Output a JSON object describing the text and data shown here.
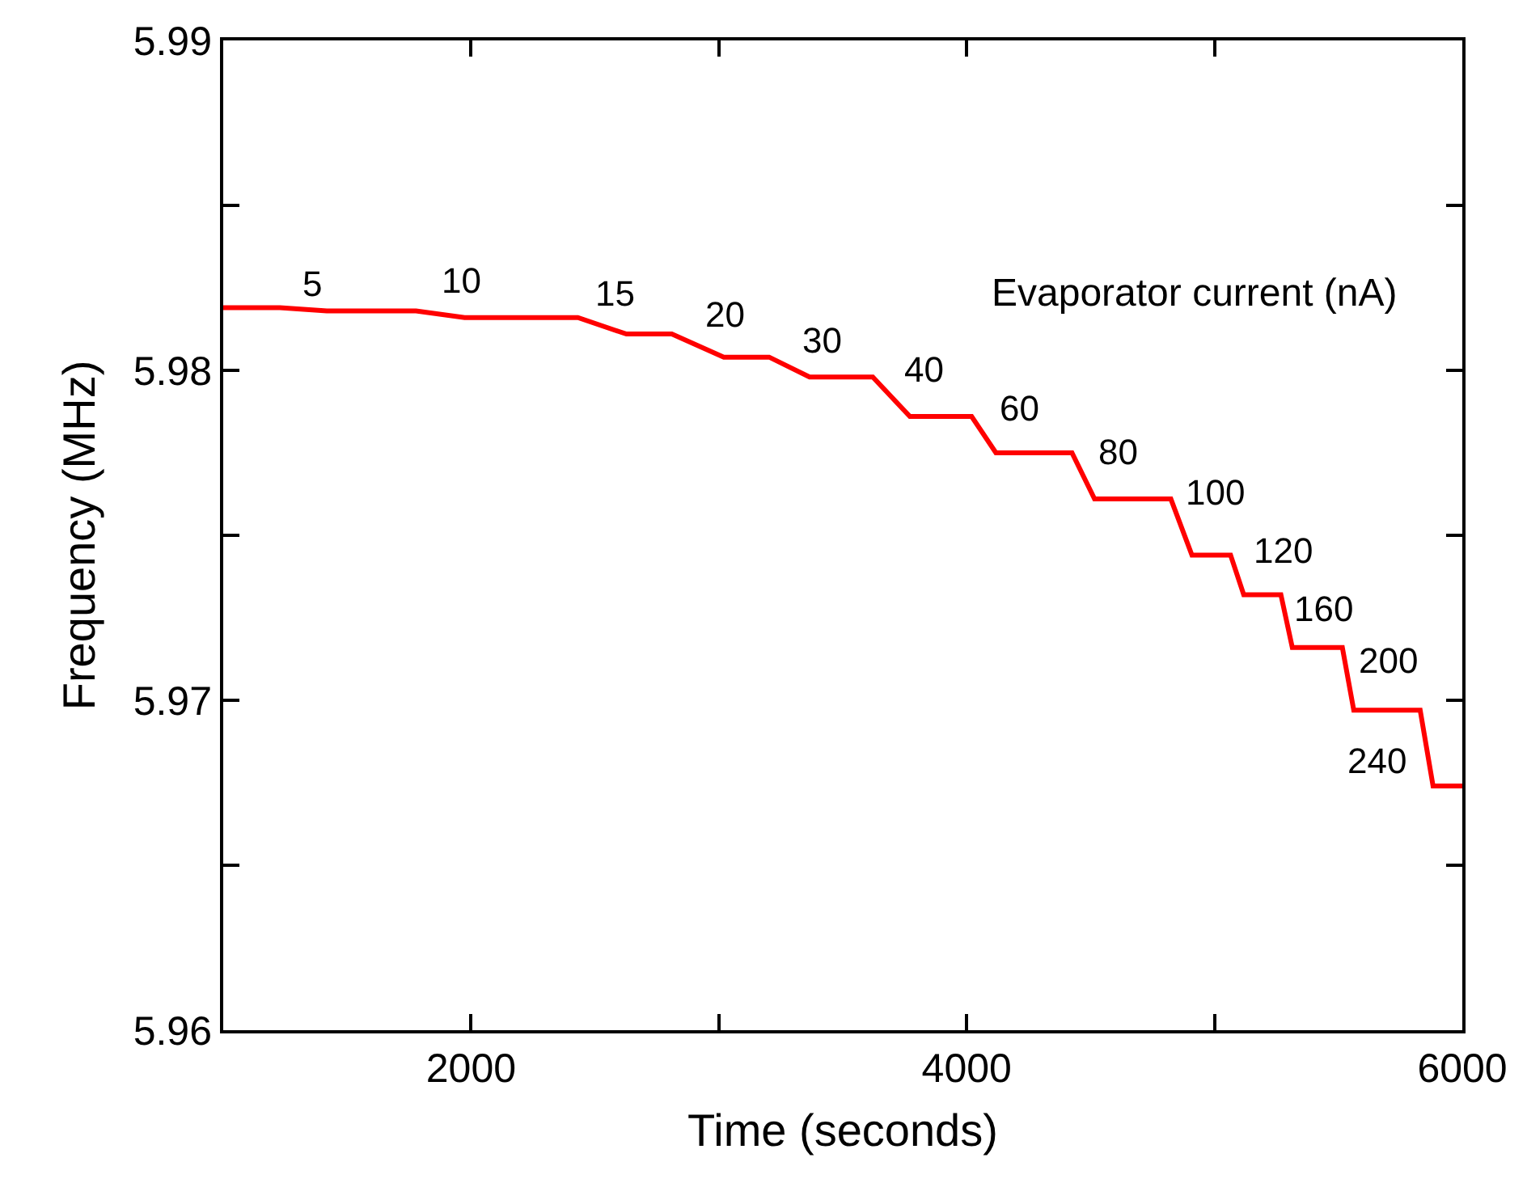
{
  "chart_data": {
    "type": "line",
    "xlabel": "Time (seconds)",
    "ylabel": "Frequency (MHz)",
    "x": [
      1000,
      1013,
      1229,
      1418,
      1778,
      1974,
      2431,
      2627,
      2810,
      3020,
      3203,
      3366,
      3621,
      3771,
      4020,
      4118,
      4425,
      4516,
      4824,
      4909,
      5065,
      5118,
      5268,
      5314,
      5516,
      5562,
      5830,
      5882,
      6000
    ],
    "series": [
      {
        "color": "#ff0000",
        "values": [
          5.9819,
          5.9819,
          5.9819,
          5.9818,
          5.9818,
          5.9816,
          5.9816,
          5.9811,
          5.9811,
          5.9804,
          5.9804,
          5.9798,
          5.9798,
          5.9786,
          5.9786,
          5.9775,
          5.9775,
          5.9761,
          5.9761,
          5.9744,
          5.9744,
          5.9732,
          5.9732,
          5.9716,
          5.9716,
          5.9697,
          5.9697,
          5.9674,
          5.9674
        ]
      }
    ],
    "xlim": [
      1000,
      6000
    ],
    "xticks": [
      {
        "value": 1000,
        "label": null
      },
      2000,
      {
        "value": 3000,
        "label": null
      },
      4000,
      {
        "value": 5000,
        "label": null
      },
      6000
    ],
    "ylim": [
      5.96,
      5.99
    ],
    "yticks": [
      5.96,
      {
        "value": 5.965,
        "label": null
      },
      5.97,
      {
        "value": 5.975,
        "label": null
      },
      5.98,
      {
        "value": 5.985,
        "label": null
      },
      5.99
    ],
    "marker": "none",
    "line_style": "solid",
    "annotations": [
      "Evaporator current (nA)",
      {
        "text": "5",
        "x": 1418,
        "y": 5.9818
      },
      {
        "text": "10",
        "x": 1974,
        "y": 5.9816
      },
      {
        "text": "15",
        "x": 2627,
        "y": 5.9811
      },
      {
        "text": "20",
        "x": 3020,
        "y": 5.9804
      },
      {
        "text": "30",
        "x": 3366,
        "y": 5.9798
      },
      {
        "text": "40",
        "x": 3771,
        "y": 5.9786
      },
      {
        "text": "60",
        "x": 4118,
        "y": 5.9775
      },
      {
        "text": "80",
        "x": 4516,
        "y": 5.9761
      },
      {
        "text": "100",
        "x": 4909,
        "y": 5.9744
      },
      {
        "text": "120",
        "x": 5118,
        "y": 5.9732
      },
      {
        "text": "160",
        "x": 5314,
        "y": 5.9716
      },
      {
        "text": "200",
        "x": 5562,
        "y": 5.9697
      },
      {
        "text": "240",
        "x": 5830,
        "y": 5.9697
      }
    ]
  }
}
